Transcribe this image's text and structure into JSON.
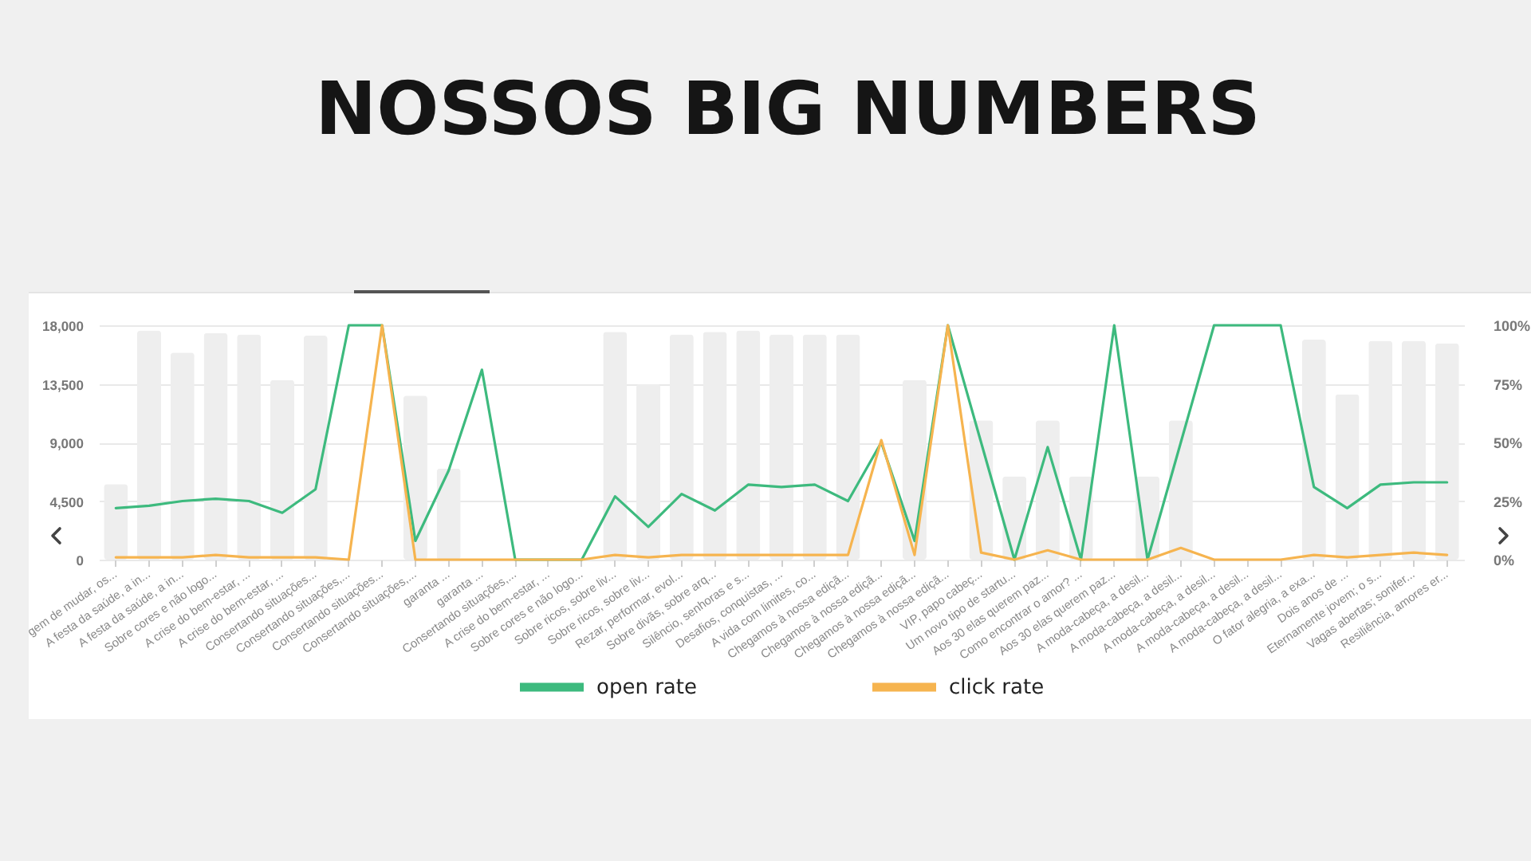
{
  "chart_data": {
    "type": "bar",
    "title": "NOSSOS BIG NUMBERS",
    "categories": [
      "gem de mudar, os...",
      "A festa da saúde, a in...",
      "A festa da saúde, a in...",
      "Sobre cores e não logo...",
      "A crise do bem-estar, ...",
      "A crise do bem-estar, ...",
      "Consertando situações...",
      "Consertando situações,...",
      "Consertando situações...",
      "Consertando situações,...",
      "garanta ...",
      "garanta ...",
      "Consertando situações,...",
      "A crise do bem-estar, ...",
      "Sobre cores e não logo...",
      "Sobre ricos, sobre liv...",
      "Sobre ricos, sobre liv...",
      "Rezar, performar, evol...",
      "Sobre divãs, sobre arq...",
      "Silêncio, senhoras e s...",
      "Desafios, conquistas, ...",
      "A vida com limites, co...",
      "Chegamos à nossa ediçã...",
      "Chegamos à nossa ediçã...",
      "Chegamos à nossa ediçã...",
      "Chegamos à nossa ediçã...",
      "VIP, papo cabeç...",
      "Um novo tipo de startu...",
      "Aos 30 elas querem paz...",
      "Como encontrar o amor? ...",
      "Aos 30 elas querem paz...",
      "A moda-cabeça, a desil...",
      "A moda-cabeça, a desil...",
      "A moda-cabeça, a desil...",
      "A moda-cabeça, a desil...",
      "A moda-cabeça, a desil...",
      "O fator alegria, a exa...",
      "Dois anos de ...",
      "Eternamente jovem; o s...",
      "Vagas abertas; sonifer...",
      "Resiliência, amores er..."
    ],
    "series": [
      {
        "color": "#eeeeee",
        "values": [
          5800,
          17600,
          15900,
          17400,
          17300,
          13800,
          17200,
          null,
          null,
          12600,
          7000,
          null,
          null,
          null,
          null,
          17500,
          13500,
          17300,
          17500,
          17600,
          17300,
          17300,
          17300,
          null,
          13800,
          null,
          10700,
          6400,
          10700,
          6400,
          null,
          6400,
          10700,
          null,
          null,
          null,
          16900,
          12700,
          16800,
          16800,
          16600
        ]
      },
      {
        "name": "open rate",
        "type": "line",
        "axis": "y2",
        "color": "#3dba7e",
        "values": [
          22,
          23,
          25,
          26,
          25,
          20,
          30,
          100,
          100,
          8,
          38,
          81,
          0,
          0,
          0,
          27,
          14,
          28,
          21,
          32,
          31,
          32,
          25,
          50,
          8,
          100,
          50,
          0,
          48,
          0,
          100,
          0,
          50,
          100,
          100,
          100,
          31,
          22,
          32,
          33,
          33
        ]
      },
      {
        "name": "click rate",
        "type": "line",
        "axis": "y2",
        "color": "#f6b44f",
        "values": [
          1,
          1,
          1,
          2,
          1,
          1,
          1,
          0,
          100,
          0,
          0,
          0,
          0,
          0,
          0,
          2,
          1,
          2,
          2,
          2,
          2,
          2,
          2,
          51,
          2,
          100,
          3,
          0,
          4,
          0,
          0,
          0,
          5,
          0,
          0,
          0,
          2,
          1,
          2,
          3,
          2
        ]
      }
    ],
    "ylim": [
      0,
      18000
    ],
    "yticks": [
      0,
      {
        "value": 4500,
        "label": "4,500"
      },
      {
        "value": 9000,
        "label": "9,000"
      },
      {
        "value": 13500,
        "label": "13,500"
      },
      {
        "value": 18000,
        "label": "18,000"
      }
    ],
    "y2lim": [
      0,
      100
    ],
    "y2ticks": [
      {
        "value": 0,
        "label": "0%"
      },
      {
        "value": 25,
        "label": "25%"
      },
      {
        "value": 50,
        "label": "50%"
      },
      {
        "value": 75,
        "label": "75%"
      },
      {
        "value": 100,
        "label": "100%"
      }
    ],
    "grid": "y",
    "legend": "bottom"
  }
}
